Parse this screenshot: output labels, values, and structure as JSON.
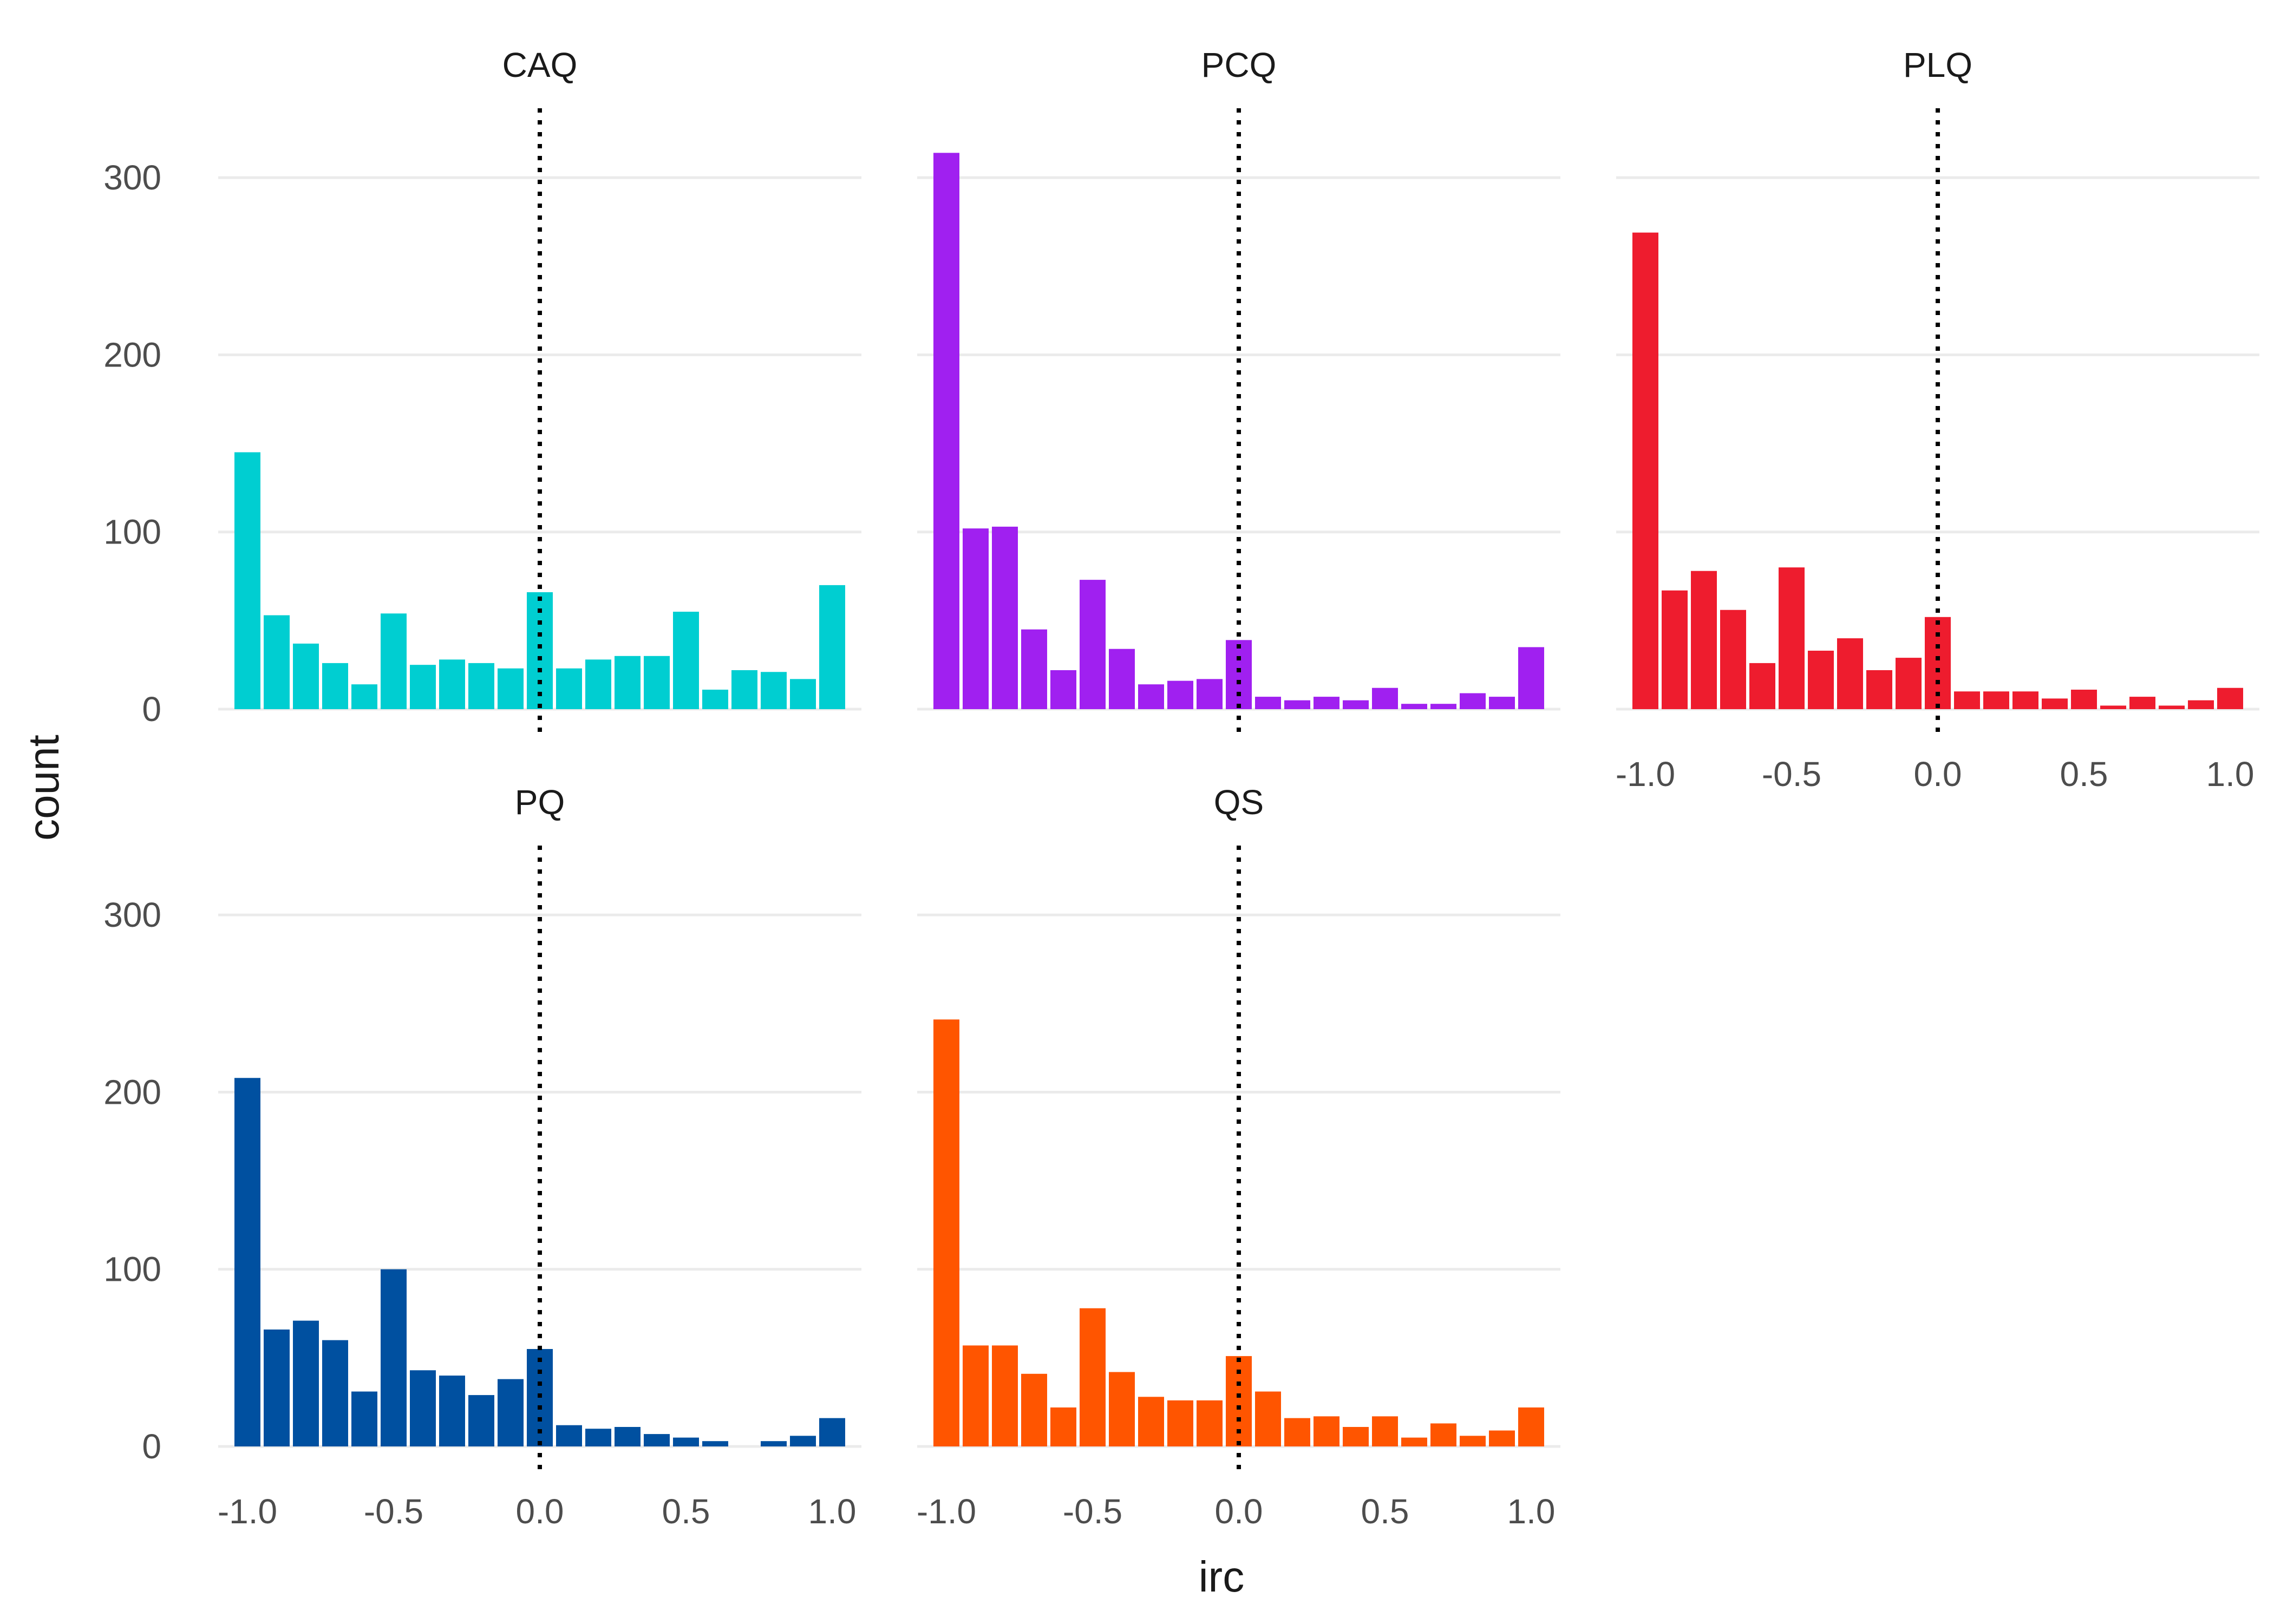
{
  "chart_data": {
    "type": "bar",
    "subtype": "faceted-histogram",
    "xlabel": "irc",
    "ylabel": "count",
    "xlim": [
      -1.1,
      1.1
    ],
    "ylim": [
      0,
      330
    ],
    "x_ticks": [
      -1.0,
      -0.5,
      0.0,
      0.5,
      1.0
    ],
    "x_tick_labels": [
      "-1.0",
      "-0.5",
      "0.0",
      "0.5",
      "1.0"
    ],
    "y_ticks": [
      0,
      100,
      200,
      300
    ],
    "y_tick_labels": [
      "0",
      "100",
      "200",
      "300"
    ],
    "reference_line": {
      "x": 0,
      "style": "dotted",
      "color": "#000000"
    },
    "grid": true,
    "legend": "none",
    "bin_centers": [
      -1.0,
      -0.9,
      -0.8,
      -0.7,
      -0.6,
      -0.5,
      -0.4,
      -0.3,
      -0.2,
      -0.1,
      0.0,
      0.1,
      0.2,
      0.3,
      0.4,
      0.5,
      0.6,
      0.7,
      0.8,
      0.9,
      1.0
    ],
    "facets": [
      {
        "name": "CAQ",
        "color": "#00CED1",
        "values": [
          145,
          53,
          37,
          26,
          14,
          54,
          25,
          28,
          26,
          23,
          66,
          23,
          28,
          30,
          30,
          55,
          11,
          22,
          21,
          17,
          70
        ]
      },
      {
        "name": "PCQ",
        "color": "#A020F0",
        "values": [
          314,
          102,
          103,
          45,
          22,
          73,
          34,
          14,
          16,
          17,
          39,
          7,
          5,
          7,
          5,
          12,
          3,
          3,
          9,
          7,
          35
        ]
      },
      {
        "name": "PLQ",
        "color": "#EE1C2E",
        "values": [
          269,
          67,
          78,
          56,
          26,
          80,
          33,
          40,
          22,
          29,
          52,
          10,
          10,
          10,
          6,
          11,
          2,
          7,
          2,
          5,
          12
        ]
      },
      {
        "name": "PQ",
        "color": "#0050A0",
        "values": [
          208,
          66,
          71,
          60,
          31,
          100,
          43,
          40,
          29,
          38,
          55,
          12,
          10,
          11,
          7,
          5,
          3,
          0,
          3,
          6,
          16
        ]
      },
      {
        "name": "QS",
        "color": "#FF5500",
        "values": [
          241,
          57,
          57,
          41,
          22,
          78,
          42,
          28,
          26,
          26,
          51,
          31,
          16,
          17,
          11,
          17,
          5,
          13,
          6,
          9,
          22
        ]
      }
    ]
  }
}
